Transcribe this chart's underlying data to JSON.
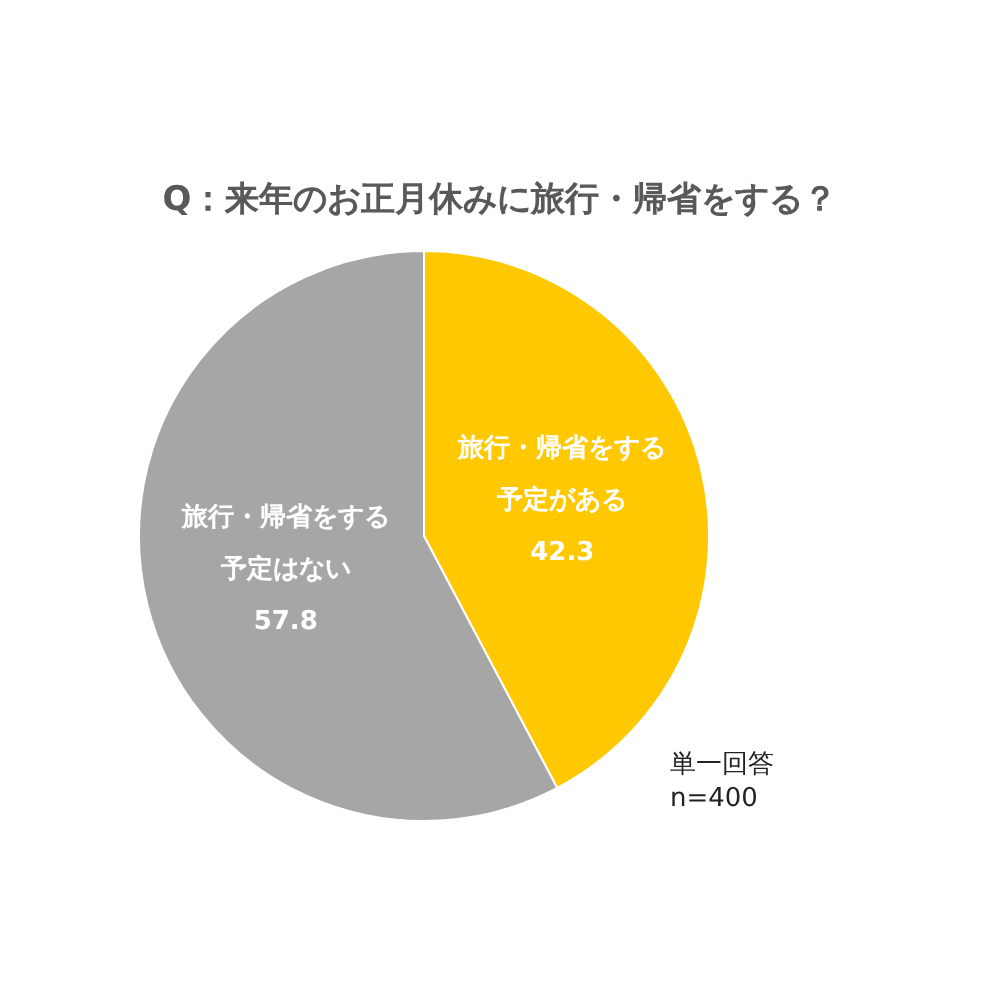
{
  "chart_data": {
    "type": "pie",
    "title": "Q：来年のお正月休みに旅行・帰省をする？",
    "categories": [
      "旅行・帰省をする予定がある",
      "旅行・帰省をする予定はない"
    ],
    "values": [
      42.3,
      57.8
    ],
    "colors": [
      "#ffc800",
      "#a6a6a6"
    ],
    "data_labels": true,
    "legend": false,
    "annotations": [
      "単一回答\nn=400"
    ]
  }
}
